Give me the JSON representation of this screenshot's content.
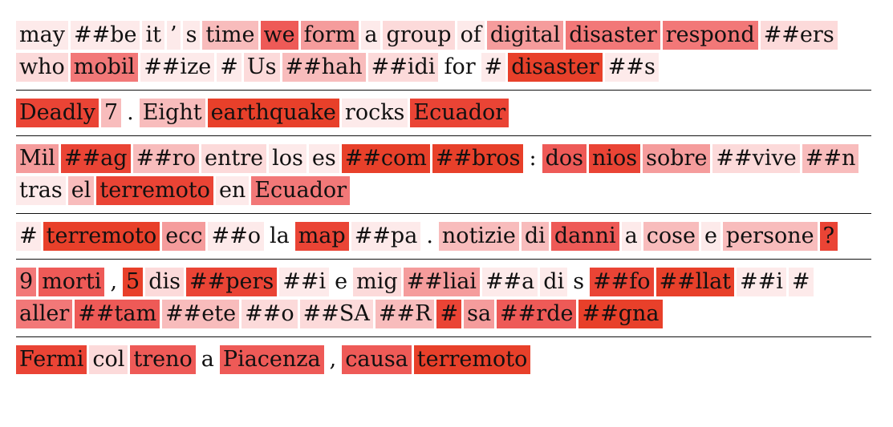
{
  "palette": {
    "0": "#ffffff",
    "1": "#fdeaea",
    "2": "#fcdada",
    "3": "#f8bcbc",
    "4": "#f59c9c",
    "5": "#f27878",
    "6": "#ee5a57",
    "7": "#ea4435",
    "8": "#e8402a"
  },
  "sentences": [
    [
      [
        "may",
        1
      ],
      [
        "##be",
        1
      ],
      [
        "it",
        1
      ],
      [
        "’",
        1
      ],
      [
        "s",
        1
      ],
      [
        "time",
        3
      ],
      [
        "we",
        6
      ],
      [
        "form",
        4
      ],
      [
        "a",
        1
      ],
      [
        "group",
        2
      ],
      [
        "of",
        1
      ],
      [
        "digital",
        4
      ],
      [
        "disaster",
        5
      ],
      [
        "respond",
        5
      ],
      [
        "##ers",
        2
      ],
      [
        "who",
        2
      ],
      [
        "mobil",
        5
      ],
      [
        "##ize",
        1
      ],
      [
        "#",
        1
      ],
      [
        "Us",
        2
      ],
      [
        "##hah",
        3
      ],
      [
        "##idi",
        2
      ],
      [
        "for",
        0
      ],
      [
        "#",
        1
      ],
      [
        "disaster",
        8
      ],
      [
        "##s",
        1
      ]
    ],
    [
      [
        "Deadly",
        7
      ],
      [
        "7",
        3
      ],
      [
        ".",
        0
      ],
      [
        "Eight",
        3
      ],
      [
        "earthquake",
        8
      ],
      [
        "rocks",
        1
      ],
      [
        "Ecuador",
        7
      ]
    ],
    [
      [
        "Mil",
        4
      ],
      [
        "##ag",
        7
      ],
      [
        "##ro",
        3
      ],
      [
        "entre",
        2
      ],
      [
        "los",
        1
      ],
      [
        "es",
        1
      ],
      [
        "##com",
        8
      ],
      [
        "##bros",
        8
      ],
      [
        ":",
        0
      ],
      [
        "dos",
        6
      ],
      [
        "nios",
        7
      ],
      [
        "sobre",
        4
      ],
      [
        "##vive",
        2
      ],
      [
        "##n",
        3
      ],
      [
        "tras",
        1
      ],
      [
        "el",
        3
      ],
      [
        "terremoto",
        7
      ],
      [
        "en",
        1
      ],
      [
        "Ecuador",
        5
      ]
    ],
    [
      [
        "#",
        1
      ],
      [
        "terremoto",
        8
      ],
      [
        "ecc",
        4
      ],
      [
        "##o",
        1
      ],
      [
        "la",
        0
      ],
      [
        "map",
        7
      ],
      [
        "##pa",
        1
      ],
      [
        ".",
        0
      ],
      [
        "notizie",
        3
      ],
      [
        "di",
        3
      ],
      [
        "danni",
        6
      ],
      [
        "a",
        1
      ],
      [
        "cose",
        3
      ],
      [
        "e",
        1
      ],
      [
        "persone",
        3
      ],
      [
        "?",
        7
      ]
    ],
    [
      [
        "9",
        5
      ],
      [
        "morti",
        6
      ],
      [
        ",",
        0
      ],
      [
        "5",
        8
      ],
      [
        "dis",
        2
      ],
      [
        "##pers",
        7
      ],
      [
        "##i",
        1
      ],
      [
        "e",
        0
      ],
      [
        "mig",
        2
      ],
      [
        "##liai",
        4
      ],
      [
        "##a",
        1
      ],
      [
        "di",
        1
      ],
      [
        "s",
        0
      ],
      [
        "##fo",
        7
      ],
      [
        "##llat",
        8
      ],
      [
        "##i",
        1
      ],
      [
        "#",
        1
      ],
      [
        "aller",
        5
      ],
      [
        "##tam",
        6
      ],
      [
        "##ete",
        3
      ],
      [
        "##o",
        2
      ],
      [
        "##SA",
        2
      ],
      [
        "##R",
        3
      ],
      [
        "#",
        7
      ],
      [
        "sa",
        4
      ],
      [
        "##rde",
        6
      ],
      [
        "##gna",
        8
      ]
    ],
    [
      [
        "Fermi",
        7
      ],
      [
        "col",
        2
      ],
      [
        "treno",
        6
      ],
      [
        "a",
        0
      ],
      [
        "Piacenza",
        6
      ],
      [
        ",",
        0
      ],
      [
        "causa",
        6
      ],
      [
        "terremoto",
        8
      ]
    ]
  ]
}
